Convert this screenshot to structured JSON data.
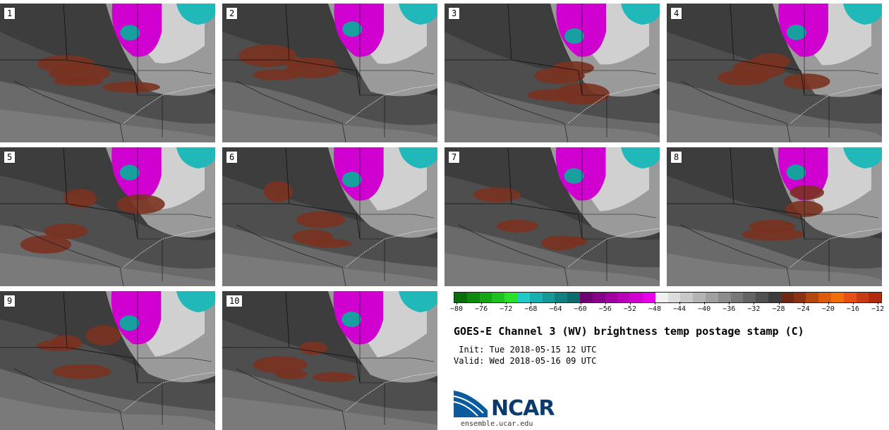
{
  "panels": [
    {
      "label": "1"
    },
    {
      "label": "2"
    },
    {
      "label": "3"
    },
    {
      "label": "4"
    },
    {
      "label": "5"
    },
    {
      "label": "6"
    },
    {
      "label": "7"
    },
    {
      "label": "8"
    },
    {
      "label": "9"
    },
    {
      "label": "10"
    }
  ],
  "colorbar": {
    "colors": [
      "#0a6e0a",
      "#0f8a0f",
      "#14a614",
      "#1ec21e",
      "#28e028",
      "#20c8c8",
      "#18b0b0",
      "#149898",
      "#108080",
      "#0c6c6c",
      "#700070",
      "#880088",
      "#a000a0",
      "#b800b8",
      "#d000d0",
      "#e800e8",
      "#f0f0f0",
      "#dcdcdc",
      "#c8c8c8",
      "#b4b4b4",
      "#a0a0a0",
      "#8c8c8c",
      "#787878",
      "#646464",
      "#505050",
      "#3c3c3c",
      "#6e2814",
      "#8c3214",
      "#b4460f",
      "#dc5a0a",
      "#f06e0a",
      "#e65014",
      "#c83c14",
      "#b42810"
    ],
    "tick_labels": [
      "−80",
      "−76",
      "−72",
      "−68",
      "−64",
      "−60",
      "−56",
      "−52",
      "−48",
      "−44",
      "−40",
      "−36",
      "−32",
      "−28",
      "−24",
      "−20",
      "−16",
      "−12"
    ]
  },
  "title": "GOES-E Channel 3 (WV) brightness temp postage stamp (C)",
  "init": " Init: Tue 2018-05-15 12 UTC",
  "valid": "Valid: Wed 2018-05-16 09 UTC",
  "logo": {
    "text": "NCAR",
    "site": "ensemble.ucar.edu",
    "brand_color": "#0a3a6e"
  }
}
